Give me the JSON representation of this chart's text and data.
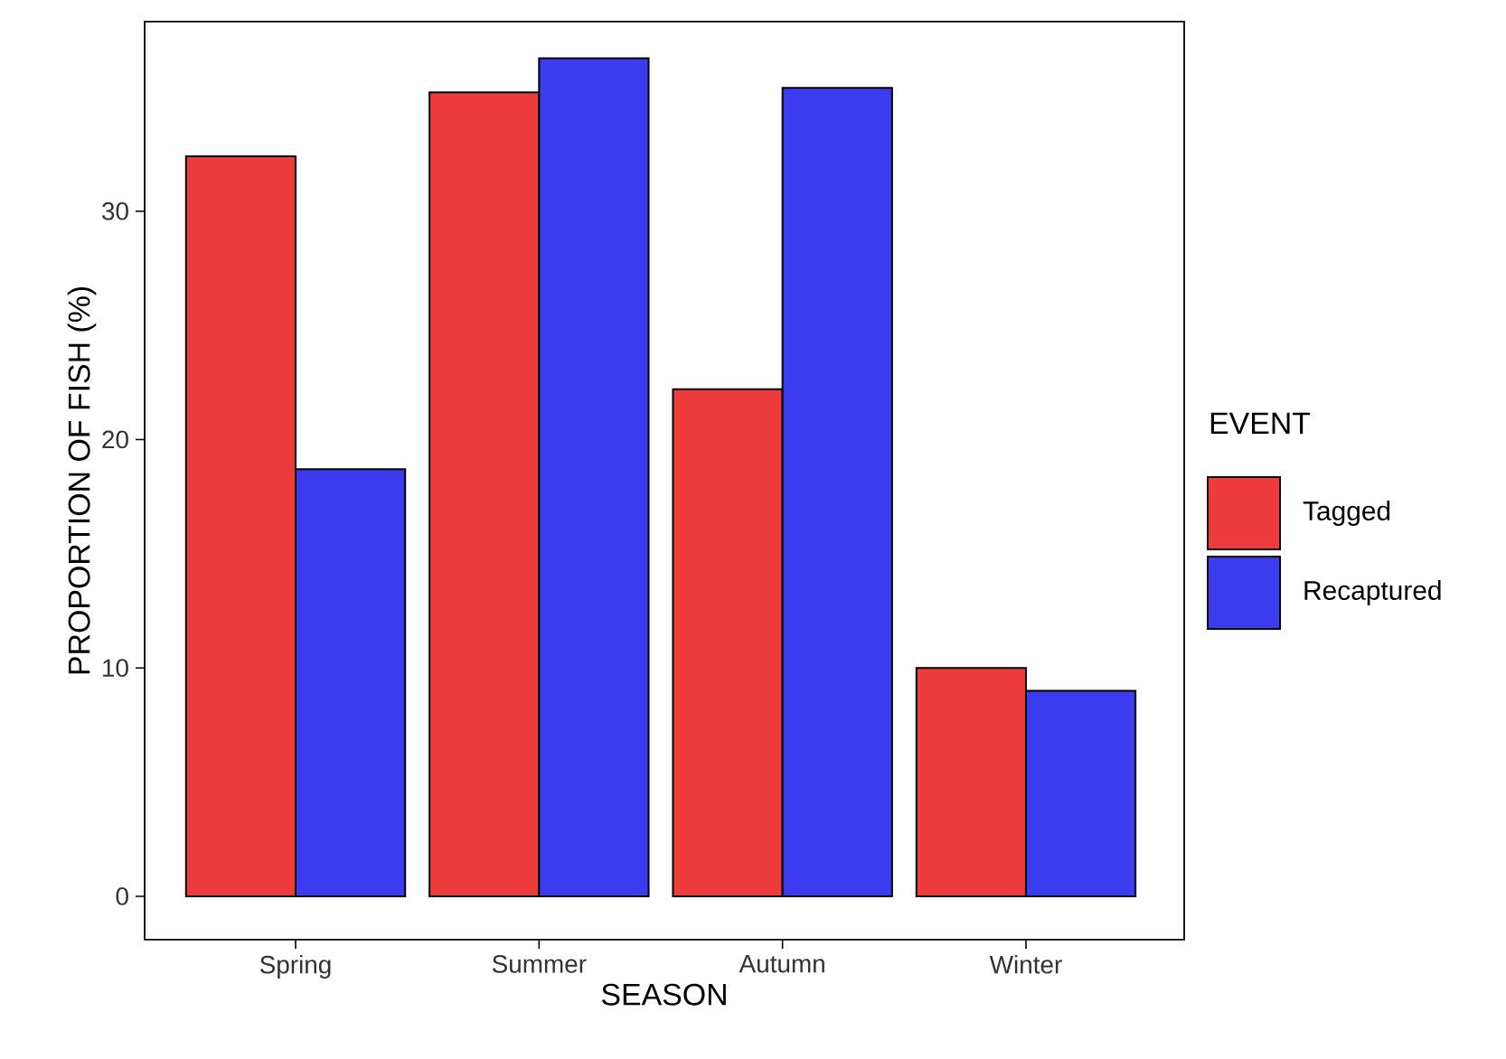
{
  "chart_data": {
    "type": "bar",
    "xlabel": "SEASON",
    "ylabel": "PROPORTION OF FISH (%)",
    "legend_title": "EVENT",
    "legend": "right",
    "categories": [
      "Spring",
      "Summer",
      "Autumn",
      "Winter"
    ],
    "series": [
      {
        "name": "Tagged",
        "color": "#ee3b3b",
        "values": [
          32.4,
          35.2,
          22.2,
          10.0
        ]
      },
      {
        "name": "Recaptured",
        "color": "#3b3bef",
        "values": [
          18.7,
          36.7,
          35.4,
          9.0
        ]
      }
    ],
    "ylim": [
      -1.9,
      38.3
    ],
    "yticks": [
      0,
      10,
      20,
      30
    ],
    "grid": false
  }
}
